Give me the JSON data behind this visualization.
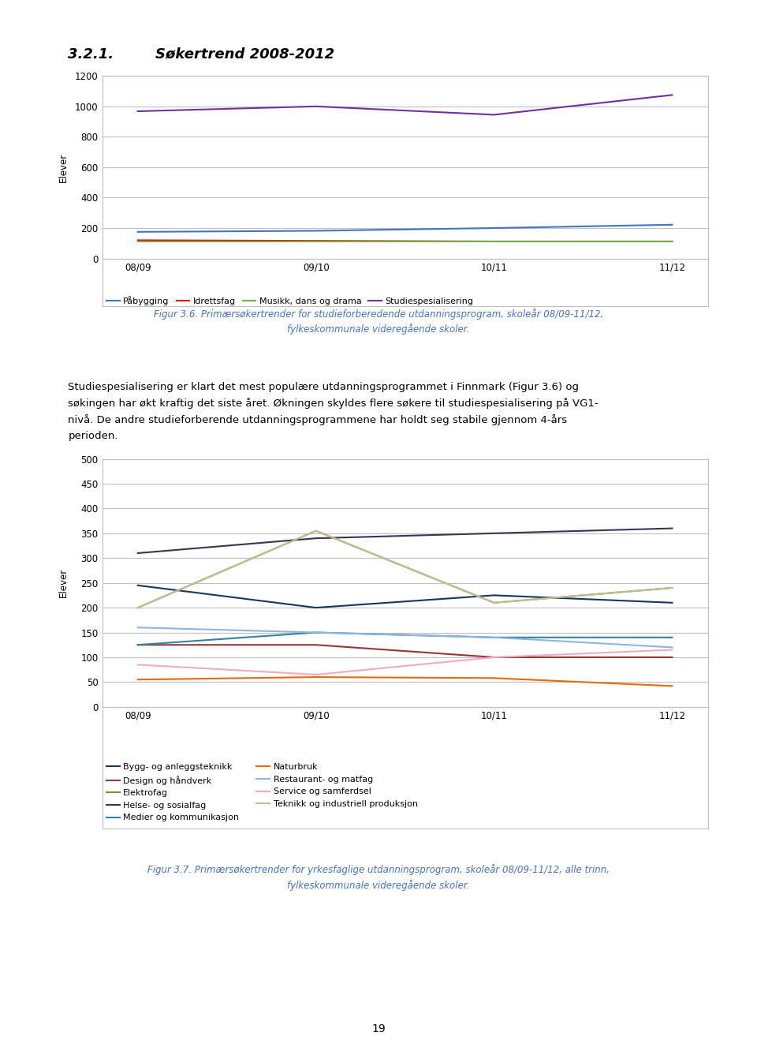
{
  "years": [
    "08/09",
    "09/10",
    "10/11",
    "11/12"
  ],
  "chart1": {
    "series": [
      {
        "label": "Påbygging",
        "color": "#4472C4",
        "values": [
          175,
          182,
          200,
          222
        ]
      },
      {
        "label": "Idrettsfag",
        "color": "#FF0000",
        "values": [
          120,
          116,
          112,
          112
        ]
      },
      {
        "label": "Musikk, dans og drama",
        "color": "#70AD47",
        "values": [
          112,
          112,
          112,
          112
        ]
      },
      {
        "label": "Studiespesialisering",
        "color": "#7030A0",
        "values": [
          968,
          1000,
          945,
          1075
        ]
      }
    ],
    "ylim": [
      0,
      1200
    ],
    "yticks": [
      0,
      200,
      400,
      600,
      800,
      1000,
      1200
    ],
    "ylabel": "Elever"
  },
  "chart2": {
    "series": [
      {
        "label": "Bygg- og anleggsteknikk",
        "color": "#17375E",
        "values": [
          245,
          200,
          225,
          210
        ]
      },
      {
        "label": "Design og håndverk",
        "color": "#953735",
        "values": [
          125,
          125,
          100,
          100
        ]
      },
      {
        "label": "Elektrofag",
        "color": "#77933C",
        "values": [
          200,
          355,
          210,
          240
        ]
      },
      {
        "label": "Helse- og sosialfag",
        "color": "#403151",
        "values": [
          310,
          340,
          350,
          360
        ]
      },
      {
        "label": "Medier og kommunikasjon",
        "color": "#31849B",
        "values": [
          125,
          150,
          140,
          140
        ]
      },
      {
        "label": "Naturbruk",
        "color": "#E36C09",
        "values": [
          55,
          60,
          58,
          42
        ]
      },
      {
        "label": "Restaurant- og matfag",
        "color": "#8EB4E3",
        "values": [
          160,
          150,
          140,
          120
        ]
      },
      {
        "label": "Service og samferdsel",
        "color": "#F2ABBA",
        "values": [
          85,
          65,
          100,
          115
        ]
      },
      {
        "label": "Teknikk og industriell produksjon",
        "color": "#C4BD97",
        "values": [
          200,
          355,
          210,
          240
        ]
      }
    ],
    "ylim": [
      0,
      500
    ],
    "yticks": [
      0,
      50,
      100,
      150,
      200,
      250,
      300,
      350,
      400,
      450,
      500
    ],
    "ylabel": "Elever"
  },
  "title_num": "3.2.1.",
  "title_text": "Søkertrend 2008-2012",
  "caption1_text": "Figur 3.6. Primærsøkertrender for studieforberedende utdanningsprogram, skoleår 08/09-11/12,\nfylkeskommunale videregående skoler.",
  "caption2_text": "Figur 3.7. Primærsøkertrender for yrkesfaglige utdanningsprogram, skoleår 08/09-11/12, alle trinn,\nfylkeskommunale videregående skoler.",
  "body_text": "Studiespesialisering er klart det mest populære utdanningsprogrammet i Finnmark (Figur 3.6) og\nsøkingen har økt kraftig det siste året. Økningen skyldes flere søkere til studiespesialisering på VG1-\nnivå. De andre studieforberende utdanningsprogrammene har holdt seg stabile gjennom 4-års\nperioden.",
  "page_number": "19",
  "page_bg": "#FFFFFF",
  "chart_bg": "#FFFFFF",
  "grid_color": "#BFBFBF",
  "border_color": "#BFBFBF",
  "caption_color": "#4472C4",
  "text_color": "#000000"
}
